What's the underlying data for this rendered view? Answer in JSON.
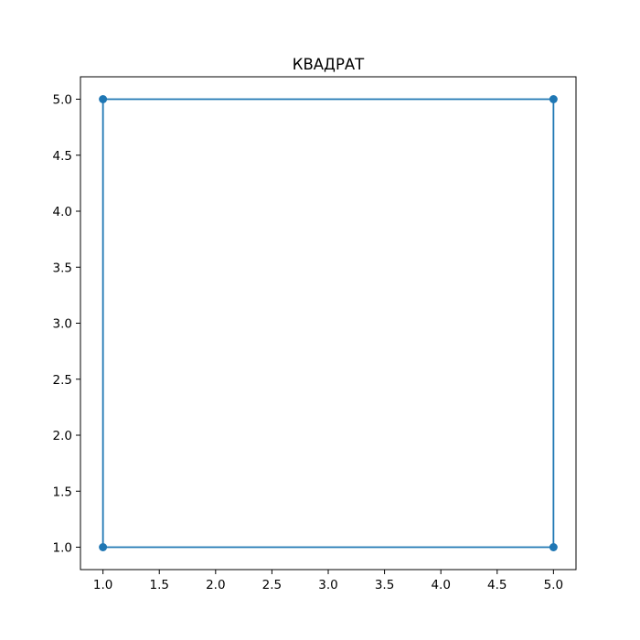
{
  "chart_data": {
    "type": "line",
    "title": "КВАДРАТ",
    "xlabel": "",
    "ylabel": "",
    "xlim": [
      0.8,
      5.2
    ],
    "ylim": [
      0.8,
      5.2
    ],
    "x_ticks": [
      1.0,
      1.5,
      2.0,
      2.5,
      3.0,
      3.5,
      4.0,
      4.5,
      5.0
    ],
    "y_ticks": [
      1.0,
      1.5,
      2.0,
      2.5,
      3.0,
      3.5,
      4.0,
      4.5,
      5.0
    ],
    "x_tick_labels": [
      "1.0",
      "1.5",
      "2.0",
      "2.5",
      "3.0",
      "3.5",
      "4.0",
      "4.5",
      "5.0"
    ],
    "y_tick_labels": [
      "1.0",
      "1.5",
      "2.0",
      "2.5",
      "3.0",
      "3.5",
      "4.0",
      "4.5",
      "5.0"
    ],
    "grid": false,
    "series": [
      {
        "x": [
          1,
          5,
          5,
          1,
          1
        ],
        "y": [
          1,
          1,
          5,
          5,
          1
        ],
        "marker": "circle",
        "color": "#1f77b4"
      }
    ]
  },
  "colors": {
    "series": "#1f77b4",
    "axes": "#000000",
    "background": "#ffffff"
  }
}
